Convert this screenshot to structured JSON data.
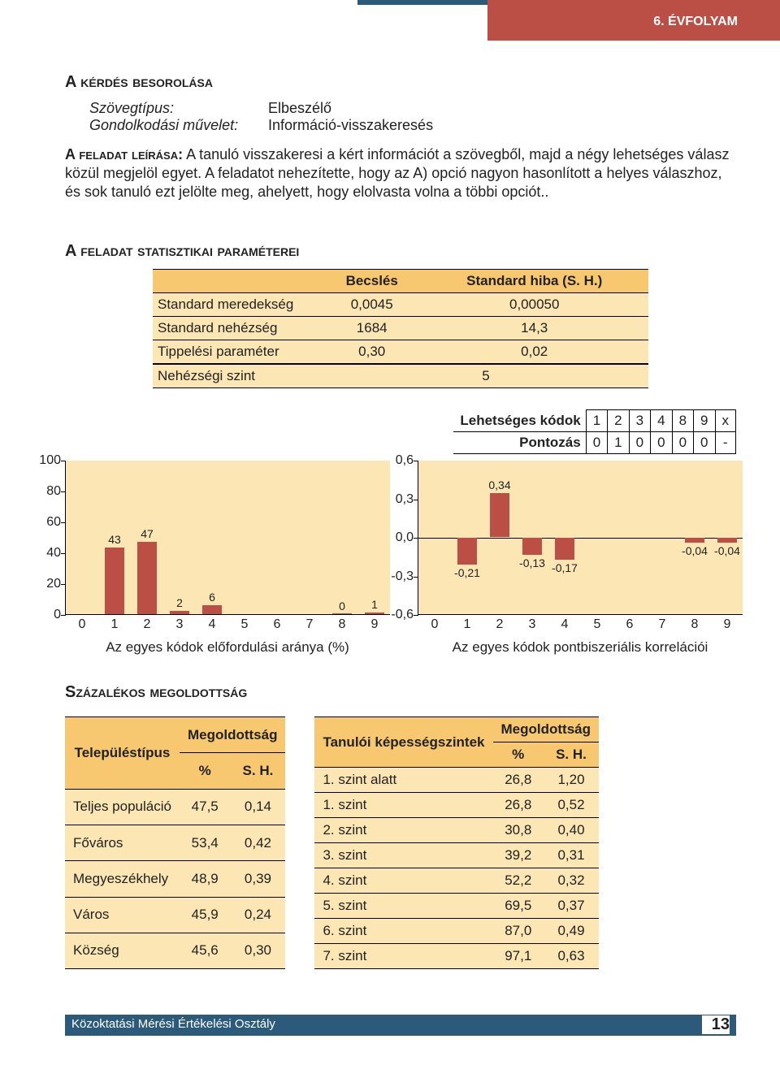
{
  "header": {
    "grade": "6. ÉVFOLYAM"
  },
  "classification": {
    "title": "A kérdés besorolása",
    "rows": [
      {
        "label": "Szövegtípus:",
        "value": "Elbeszélő"
      },
      {
        "label": "Gondolkodási művelet:",
        "value": "Információ-visszakeresés"
      }
    ]
  },
  "description": {
    "lead": "A feladat leírása:",
    "text": "A tanuló visszakeresi a kért információt a szövegből, majd a négy lehetséges válasz közül megjelöl egyet. A feladatot nehezítette, hogy az A) opció nagyon hasonlított a helyes válaszhoz, és sok tanuló ezt jelölte meg, ahelyett, hogy elolvasta volna a többi opciót.."
  },
  "params": {
    "title": "A feladat statisztikai paraméterei",
    "headers": [
      "",
      "Becslés",
      "Standard hiba (S. H.)"
    ],
    "rows": [
      {
        "label": "Standard meredekség",
        "est": "0,0045",
        "se": "0,00050"
      },
      {
        "label": "Standard nehézség",
        "est": "1684",
        "se": "14,3"
      },
      {
        "label": "Tippelési paraméter",
        "est": "0,30",
        "se": "0,02"
      }
    ],
    "difficulty": {
      "label": "Nehézségi szint",
      "value": "5"
    }
  },
  "codes": {
    "labels": [
      "Lehetséges kódok",
      "Pontozás"
    ],
    "possible": [
      "1",
      "2",
      "3",
      "4",
      "8",
      "9",
      "x"
    ],
    "scoring": [
      "0",
      "1",
      "0",
      "0",
      "0",
      "0",
      "-"
    ]
  },
  "chart_left": {
    "type": "bar",
    "background_color": "#fbe6b4",
    "bar_color": "#bb4f45",
    "ylim": [
      0,
      100
    ],
    "ytick_step": 20,
    "xticks": [
      0,
      1,
      2,
      3,
      4,
      5,
      6,
      7,
      8,
      9
    ],
    "bars": [
      {
        "x": 1,
        "value": 43,
        "label": "43"
      },
      {
        "x": 2,
        "value": 47,
        "label": "47"
      },
      {
        "x": 3,
        "value": 2,
        "label": "2"
      },
      {
        "x": 4,
        "value": 6,
        "label": "6"
      },
      {
        "x": 8,
        "value": 0,
        "label": "0"
      },
      {
        "x": 9,
        "value": 1,
        "label": "1"
      }
    ],
    "caption": "Az egyes kódok előfordulási aránya (%)"
  },
  "chart_right": {
    "type": "bar",
    "background_color": "#fbe6b4",
    "bar_color": "#bb4f45",
    "ylim": [
      -0.6,
      0.6
    ],
    "ytick_step": 0.3,
    "yticklabels": [
      "-0,6",
      "-0,3",
      "0,0",
      "0,3",
      "0,6"
    ],
    "xticks": [
      0,
      1,
      2,
      3,
      4,
      5,
      6,
      7,
      8,
      9
    ],
    "bars": [
      {
        "x": 1,
        "value": -0.21,
        "label": "-0,21"
      },
      {
        "x": 2,
        "value": 0.34,
        "label": "0,34"
      },
      {
        "x": 3,
        "value": -0.13,
        "label": "-0,13"
      },
      {
        "x": 4,
        "value": -0.17,
        "label": "-0,17"
      },
      {
        "x": 8,
        "value": -0.04,
        "label": "-0,04"
      },
      {
        "x": 9,
        "value": -0.04,
        "label": "-0,04"
      }
    ],
    "caption": "Az egyes kódok pontbiszeriális korrelációi"
  },
  "solved": {
    "title": "Százalékos megoldottság",
    "left": {
      "main_header": "Településtípus",
      "sub_header": "Megoldottság",
      "cols": [
        "%",
        "S. H."
      ],
      "rows": [
        {
          "label": "Teljes populáció",
          "pct": "47,5",
          "se": "0,14"
        },
        {
          "label": "Főváros",
          "pct": "53,4",
          "se": "0,42"
        },
        {
          "label": "Megyeszékhely",
          "pct": "48,9",
          "se": "0,39"
        },
        {
          "label": "Város",
          "pct": "45,9",
          "se": "0,24"
        },
        {
          "label": "Község",
          "pct": "45,6",
          "se": "0,30"
        }
      ]
    },
    "right": {
      "main_header": "Tanulói képességszintek",
      "sub_header": "Megoldottság",
      "cols": [
        "%",
        "S. H."
      ],
      "rows": [
        {
          "label": "1. szint alatt",
          "pct": "26,8",
          "se": "1,20"
        },
        {
          "label": "1. szint",
          "pct": "26,8",
          "se": "0,52"
        },
        {
          "label": "2. szint",
          "pct": "30,8",
          "se": "0,40"
        },
        {
          "label": "3. szint",
          "pct": "39,2",
          "se": "0,31"
        },
        {
          "label": "4. szint",
          "pct": "52,2",
          "se": "0,32"
        },
        {
          "label": "5. szint",
          "pct": "69,5",
          "se": "0,37"
        },
        {
          "label": "6. szint",
          "pct": "87,0",
          "se": "0,49"
        },
        {
          "label": "7. szint",
          "pct": "97,1",
          "se": "0,63"
        }
      ]
    }
  },
  "footer": {
    "dept": "Közoktatási Mérési Értékelési Osztály",
    "page": "13"
  }
}
